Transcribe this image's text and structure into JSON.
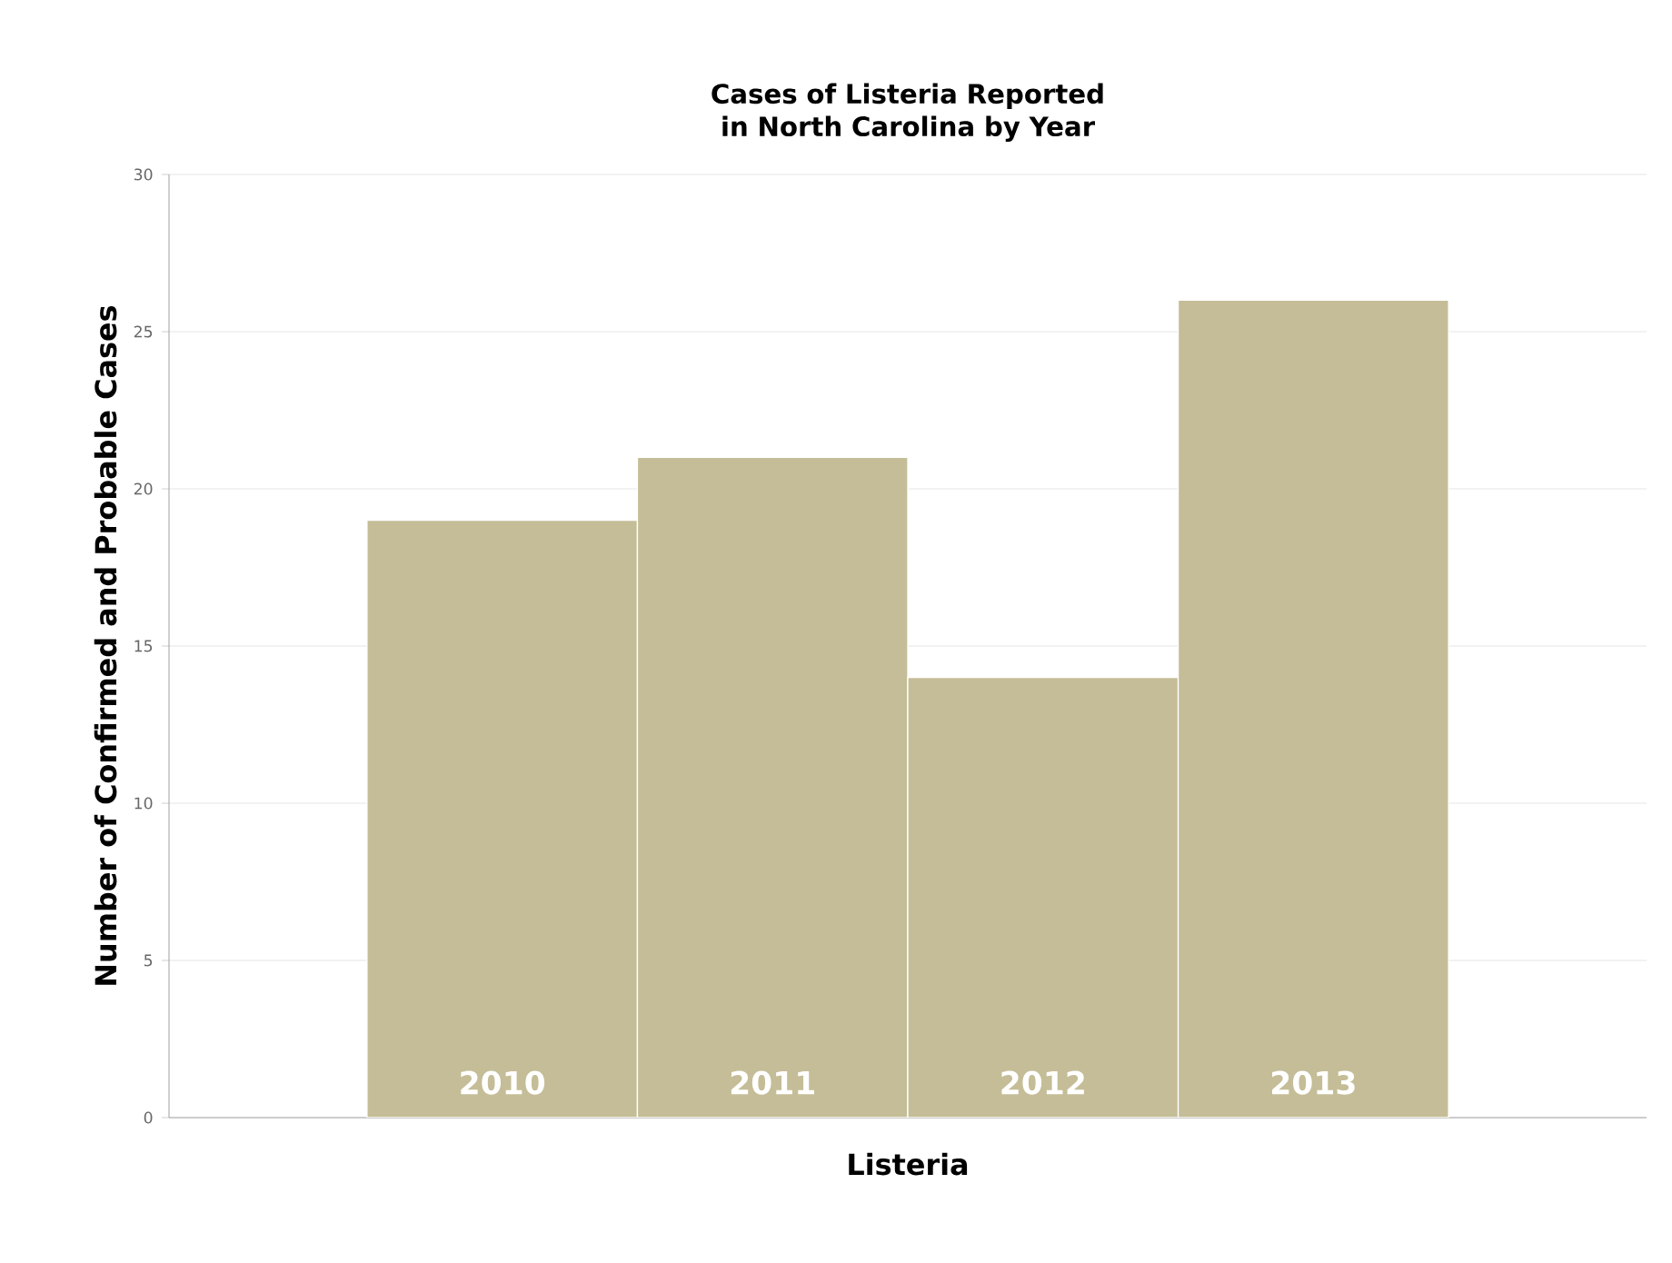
{
  "chart_data": {
    "type": "bar",
    "title": "Cases of Listeria Reported in North Carolina by Year",
    "ylabel": "Number of Confirmed and Probable Cases",
    "categories": [
      "Listeria"
    ],
    "series": [
      {
        "name": "2010",
        "color": "#c4bd97",
        "values": [
          19
        ]
      },
      {
        "name": "2011",
        "color": "#c4bd97",
        "values": [
          21
        ]
      },
      {
        "name": "2012",
        "color": "#c4bd97",
        "values": [
          14
        ]
      },
      {
        "name": "2013",
        "color": "#c4bd97",
        "values": [
          26
        ]
      }
    ],
    "ylim": [
      0,
      30
    ],
    "yticks": [
      0,
      5,
      10,
      15,
      20,
      25,
      30
    ],
    "grid": "y"
  }
}
